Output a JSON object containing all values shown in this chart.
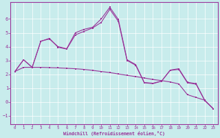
{
  "background_color": "#c8ecec",
  "line_color": "#993399",
  "xlabel": "Windchill (Refroidissement éolien,°C)",
  "xlim": [
    -0.5,
    23.5
  ],
  "ylim": [
    -1.6,
    7.2
  ],
  "yticks": [
    -1,
    0,
    1,
    2,
    3,
    4,
    5,
    6
  ],
  "xticks": [
    0,
    1,
    2,
    3,
    4,
    5,
    6,
    7,
    8,
    9,
    10,
    11,
    12,
    13,
    14,
    15,
    16,
    17,
    18,
    19,
    20,
    21,
    22,
    23
  ],
  "series": [
    [
      2.2,
      3.05,
      2.5,
      4.4,
      4.55,
      4.0,
      3.85,
      5.0,
      5.25,
      5.4,
      6.0,
      6.85,
      5.95,
      3.05,
      2.7,
      1.4,
      1.35,
      1.5,
      2.3,
      2.4,
      1.42,
      1.32,
      0.12,
      -0.5
    ],
    [
      2.2,
      3.05,
      2.5,
      4.38,
      4.6,
      3.95,
      3.82,
      4.85,
      5.1,
      5.35,
      5.75,
      6.7,
      5.82,
      3.0,
      2.65,
      1.38,
      1.32,
      1.5,
      2.28,
      2.35,
      1.38,
      1.28,
      0.1,
      -0.5
    ],
    [
      2.2,
      2.5,
      2.5,
      2.5,
      2.48,
      2.46,
      2.43,
      2.4,
      2.35,
      2.28,
      2.2,
      2.12,
      2.02,
      1.92,
      1.83,
      1.73,
      1.62,
      1.54,
      1.44,
      1.3,
      0.52,
      0.32,
      0.12,
      -0.5
    ]
  ]
}
